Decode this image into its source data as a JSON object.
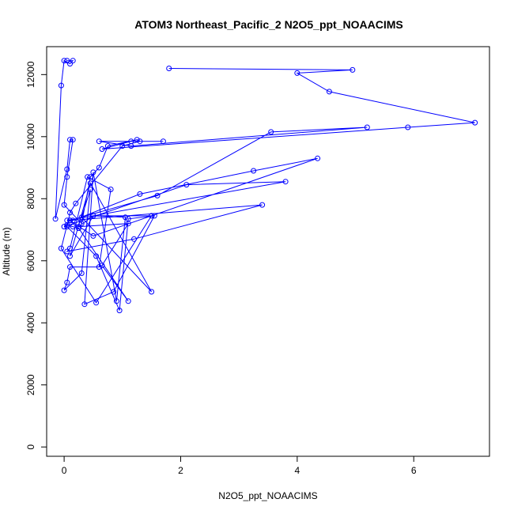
{
  "chart_data": {
    "type": "line",
    "title": "ATOM3 Northeast_Pacific_2 N2O5_ppt_NOAACIMS",
    "xlabel": "N2O5_ppt_NOAACIMS",
    "ylabel": "Altitude (m)",
    "xlim": [
      -0.3,
      7.3
    ],
    "ylim": [
      -300,
      12900
    ],
    "x_ticks": [
      0,
      2,
      4,
      6
    ],
    "y_ticks": [
      0,
      2000,
      4000,
      6000,
      8000,
      10000,
      12000
    ],
    "grid": false,
    "colors": {
      "series": "#0000ff",
      "axes": "#000000"
    },
    "series": [
      {
        "x": [
          0.05,
          0.15,
          0.1,
          0.0,
          -0.05,
          -0.15,
          0.05,
          0.1,
          0.15,
          0.05,
          0.0,
          0.3,
          0.45,
          0.6,
          0.75,
          1.25,
          1.3,
          1.0,
          0.2,
          0.1,
          0.05,
          0.55,
          0.95,
          1.1,
          1.55,
          0.85,
          0.35,
          0.5,
          0.9,
          1.05,
          0.5,
          0.25,
          1.1,
          0.65,
          1.1,
          0.25,
          0.15,
          0.05,
          -0.05,
          0.55,
          1.5,
          0.5,
          0.1,
          0.45,
          1.5,
          0.3,
          0.45,
          0.3,
          0.0,
          0.05,
          0.1,
          0.6,
          0.8,
          0.4,
          0.1,
          0.05,
          1.2,
          3.4,
          0.1,
          0.0,
          2.1,
          3.8,
          0.05,
          0.15,
          1.3,
          3.25,
          4.35,
          0.5,
          0.1,
          1.6,
          3.55,
          5.2,
          1.15,
          0.6,
          1.7,
          1.15,
          0.65,
          5.9,
          7.05,
          4.55,
          4.0,
          4.95,
          1.8
        ],
        "y": [
          12450,
          12450,
          12350,
          12450,
          11650,
          7350,
          8950,
          9900,
          9900,
          8700,
          7800,
          7200,
          8700,
          9000,
          9700,
          9900,
          9850,
          9700,
          7850,
          7550,
          7100,
          6150,
          4400,
          7350,
          7450,
          5000,
          4600,
          8850,
          4700,
          7400,
          7450,
          7100,
          7200,
          5850,
          4700,
          7050,
          7100,
          7150,
          6400,
          4650,
          7450,
          7450,
          6150,
          8500,
          5000,
          7400,
          8300,
          5600,
          5050,
          5300,
          5800,
          5800,
          8300,
          8700,
          6400,
          6300,
          6700,
          7800,
          7300,
          7100,
          8450,
          8550,
          7300,
          7300,
          8150,
          8900,
          9300,
          6800,
          7300,
          8100,
          10150,
          10300,
          9700,
          9850,
          9850,
          9850,
          9600,
          10300,
          10450,
          11450,
          12050,
          12150,
          12200
        ]
      }
    ]
  }
}
